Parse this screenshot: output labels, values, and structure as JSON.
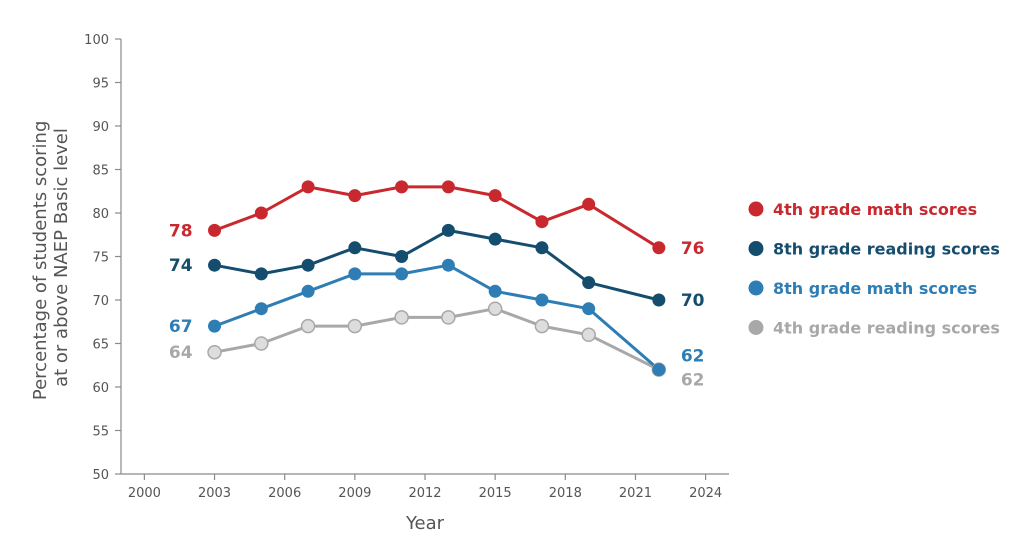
{
  "chart_data": {
    "type": "line",
    "xlabel": "Year",
    "ylabel": [
      "Percentage of students scoring",
      "at or above NAEP Basic level"
    ],
    "xlim": [
      1999,
      2025
    ],
    "ylim": [
      50,
      100
    ],
    "x_ticks": [
      2000,
      2003,
      2006,
      2009,
      2012,
      2015,
      2018,
      2021,
      2024
    ],
    "y_ticks": [
      50,
      55,
      60,
      65,
      70,
      75,
      80,
      85,
      90,
      95,
      100
    ],
    "grid": false,
    "legend_position": "right",
    "series": [
      {
        "name": "4th grade math scores",
        "color": "#c8282e",
        "x": [
          2003,
          2005,
          2007,
          2009,
          2011,
          2013,
          2015,
          2017,
          2019,
          2022
        ],
        "values": [
          78,
          80,
          83,
          82,
          83,
          83,
          82,
          79,
          81,
          76
        ],
        "start_label": "78",
        "end_label": "76"
      },
      {
        "name": "8th grade reading scores",
        "color": "#154d6e",
        "x": [
          2003,
          2005,
          2007,
          2009,
          2011,
          2013,
          2015,
          2017,
          2019,
          2022
        ],
        "values": [
          74,
          73,
          74,
          76,
          75,
          78,
          77,
          76,
          72,
          70
        ],
        "start_label": "74",
        "end_label": "70"
      },
      {
        "name": "8th grade math scores",
        "color": "#2e7db5",
        "x": [
          2003,
          2005,
          2007,
          2009,
          2011,
          2013,
          2015,
          2017,
          2019,
          2022
        ],
        "values": [
          67,
          69,
          71,
          73,
          73,
          74,
          71,
          70,
          69,
          62
        ],
        "start_label": "67",
        "end_label": "62"
      },
      {
        "name": "4th grade reading scores",
        "color": "#a8a8a8",
        "marker_fill": "#dddddd",
        "x": [
          2003,
          2005,
          2007,
          2009,
          2011,
          2013,
          2015,
          2017,
          2019,
          2022
        ],
        "values": [
          64,
          65,
          67,
          67,
          68,
          68,
          69,
          67,
          66,
          62
        ],
        "start_label": "64",
        "end_label": "62"
      }
    ]
  }
}
